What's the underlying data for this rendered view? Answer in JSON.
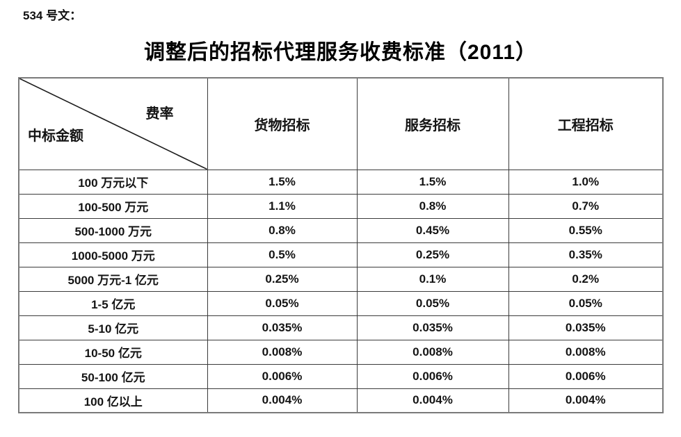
{
  "page": {
    "doc_label": "534 号文：",
    "title": "调整后的招标代理服务收费标准（2011）"
  },
  "table": {
    "corner": {
      "top_right": "费率",
      "bottom_left": "中标金额"
    },
    "columns": [
      "货物招标",
      "服务招标",
      "工程招标"
    ],
    "rows": [
      {
        "amount": "100 万元以下",
        "goods": "1.5%",
        "services": "1.5%",
        "engineering": "1.0%"
      },
      {
        "amount": "100-500 万元",
        "goods": "1.1%",
        "services": "0.8%",
        "engineering": "0.7%"
      },
      {
        "amount": "500-1000 万元",
        "goods": "0.8%",
        "services": "0.45%",
        "engineering": "0.55%"
      },
      {
        "amount": "1000-5000 万元",
        "goods": "0.5%",
        "services": "0.25%",
        "engineering": "0.35%"
      },
      {
        "amount": "5000 万元-1 亿元",
        "goods": "0.25%",
        "services": "0.1%",
        "engineering": "0.2%"
      },
      {
        "amount": "1-5 亿元",
        "goods": "0.05%",
        "services": "0.05%",
        "engineering": "0.05%"
      },
      {
        "amount": "5-10 亿元",
        "goods": "0.035%",
        "services": "0.035%",
        "engineering": "0.035%"
      },
      {
        "amount": "10-50 亿元",
        "goods": "0.008%",
        "services": "0.008%",
        "engineering": "0.008%"
      },
      {
        "amount": "50-100 亿元",
        "goods": "0.006%",
        "services": "0.006%",
        "engineering": "0.006%"
      },
      {
        "amount": "100 亿以上",
        "goods": "0.004%",
        "services": "0.004%",
        "engineering": "0.004%"
      }
    ]
  }
}
